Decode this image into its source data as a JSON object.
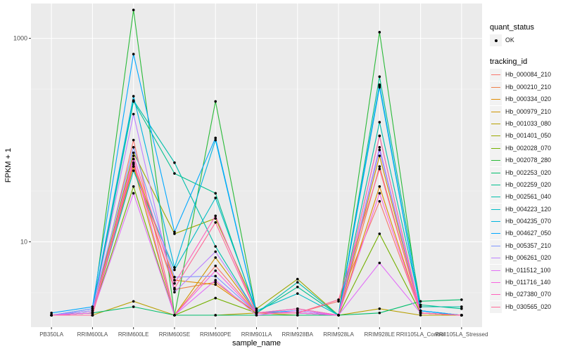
{
  "chart_data": {
    "type": "line",
    "xlabel": "sample_name",
    "ylabel": "FPKM + 1",
    "yscale": "log10",
    "ylim": [
      1.45,
      2200
    ],
    "yticks": [
      10,
      1000
    ],
    "ytick_labels": [
      "10",
      "1000"
    ],
    "grid": true,
    "legend_position": "right",
    "categories": [
      "PB350LA",
      "RRIM600LA",
      "RRIM600LE",
      "RRIM600SE",
      "RRIM600PE",
      "RRIM901LA",
      "RRIM928BA",
      "RRIM928LA",
      "RRIM928LE",
      "RRII105LA_Control",
      "RRII105LA_Stressed"
    ],
    "point_legend": {
      "title": "quant_status",
      "entries": [
        "OK"
      ]
    },
    "color_legend": {
      "title": "tracking_id"
    },
    "series": [
      {
        "name": "Hb_000084_210",
        "color": "#F8766D",
        "values": [
          1.9,
          1.9,
          100,
          1.9,
          5.8,
          2.0,
          2.0,
          2.6,
          25,
          2.0,
          1.9
        ]
      },
      {
        "name": "Hb_000210_210",
        "color": "#EE7F48",
        "values": [
          1.9,
          1.9,
          55,
          3.4,
          4.0,
          2.0,
          2.0,
          1.9,
          55,
          2.0,
          1.9
        ]
      },
      {
        "name": "Hb_000334_020",
        "color": "#E08B00",
        "values": [
          1.9,
          2.0,
          60,
          4.2,
          3.8,
          2.0,
          2.2,
          1.9,
          35,
          2.0,
          1.9
        ]
      },
      {
        "name": "Hb_000979_210",
        "color": "#CE9500",
        "values": [
          1.9,
          1.9,
          55,
          1.9,
          7.0,
          2.0,
          2.0,
          1.9,
          70,
          2.0,
          1.9
        ]
      },
      {
        "name": "Hb_001033_080",
        "color": "#B79F00",
        "values": [
          1.9,
          1.9,
          2.6,
          1.9,
          1.9,
          2.0,
          1.9,
          1.9,
          2.2,
          1.9,
          1.9
        ]
      },
      {
        "name": "Hb_001401_050",
        "color": "#9AA800",
        "values": [
          1.9,
          2.0,
          75,
          12,
          17,
          2.2,
          4.3,
          1.9,
          110,
          2.0,
          1.9
        ]
      },
      {
        "name": "Hb_002028_070",
        "color": "#74B000",
        "values": [
          1.9,
          2.0,
          35,
          1.9,
          2.8,
          2.0,
          2.0,
          1.9,
          12,
          2.0,
          1.9
        ]
      },
      {
        "name": "Hb_002078_280",
        "color": "#29BA38",
        "values": [
          1.9,
          2.0,
          1900,
          1.9,
          240,
          2.0,
          2.0,
          1.9,
          1150,
          2.0,
          1.9
        ]
      },
      {
        "name": "Hb_002253_020",
        "color": "#00BE6B",
        "values": [
          1.9,
          2.0,
          2.3,
          1.9,
          1.9,
          1.9,
          1.9,
          1.9,
          2.0,
          2.6,
          2.7
        ]
      },
      {
        "name": "Hb_002259_020",
        "color": "#00C08E",
        "values": [
          1.9,
          2.0,
          240,
          47,
          30,
          2.0,
          3.6,
          1.9,
          420,
          2.4,
          2.2
        ]
      },
      {
        "name": "Hb_002561_040",
        "color": "#00BFAB",
        "values": [
          1.9,
          2.1,
          245,
          60,
          9.0,
          2.0,
          4.0,
          1.9,
          150,
          2.3,
          2.3
        ]
      },
      {
        "name": "Hb_004223_120",
        "color": "#00BCC5",
        "values": [
          1.9,
          2.0,
          50,
          5.3,
          27,
          2.1,
          3.1,
          1.9,
          330,
          2.1,
          1.9
        ]
      },
      {
        "name": "Hb_004235_070",
        "color": "#00B4DE",
        "values": [
          1.9,
          2.2,
          270,
          5.6,
          100,
          2.0,
          2.0,
          1.9,
          340,
          2.1,
          1.9
        ]
      },
      {
        "name": "Hb_004627_050",
        "color": "#00A7FF",
        "values": [
          2.0,
          2.3,
          700,
          12.5,
          105,
          2.0,
          2.1,
          1.9,
          350,
          2.1,
          1.9
        ]
      },
      {
        "name": "Hb_005357_210",
        "color": "#7F96FF",
        "values": [
          1.9,
          2.2,
          85,
          4.5,
          4.6,
          2.0,
          2.2,
          1.9,
          80,
          2.0,
          1.9
        ]
      },
      {
        "name": "Hb_006261_020",
        "color": "#BC81FF",
        "values": [
          1.9,
          2.1,
          180,
          3.2,
          8.0,
          2.0,
          2.0,
          1.9,
          85,
          2.0,
          1.9
        ]
      },
      {
        "name": "Hb_011512_100",
        "color": "#E26EF7",
        "values": [
          1.9,
          2.0,
          30,
          1.9,
          4.2,
          1.9,
          2.1,
          1.9,
          6.2,
          2.0,
          1.9
        ]
      },
      {
        "name": "Hb_011716_140",
        "color": "#F863DF",
        "values": [
          1.9,
          2.0,
          65,
          1.9,
          5.2,
          2.0,
          2.0,
          1.9,
          30,
          2.0,
          1.9
        ]
      },
      {
        "name": "Hb_027380_070",
        "color": "#FF62BC",
        "values": [
          1.9,
          1.9,
          70,
          3.9,
          18,
          2.0,
          2.2,
          1.9,
          110,
          2.0,
          1.9
        ]
      },
      {
        "name": "Hb_030565_020",
        "color": "#FF6A98",
        "values": [
          1.9,
          1.9,
          58,
          3.5,
          15.5,
          2.0,
          2.0,
          2.7,
          52,
          2.0,
          1.9
        ]
      }
    ]
  }
}
